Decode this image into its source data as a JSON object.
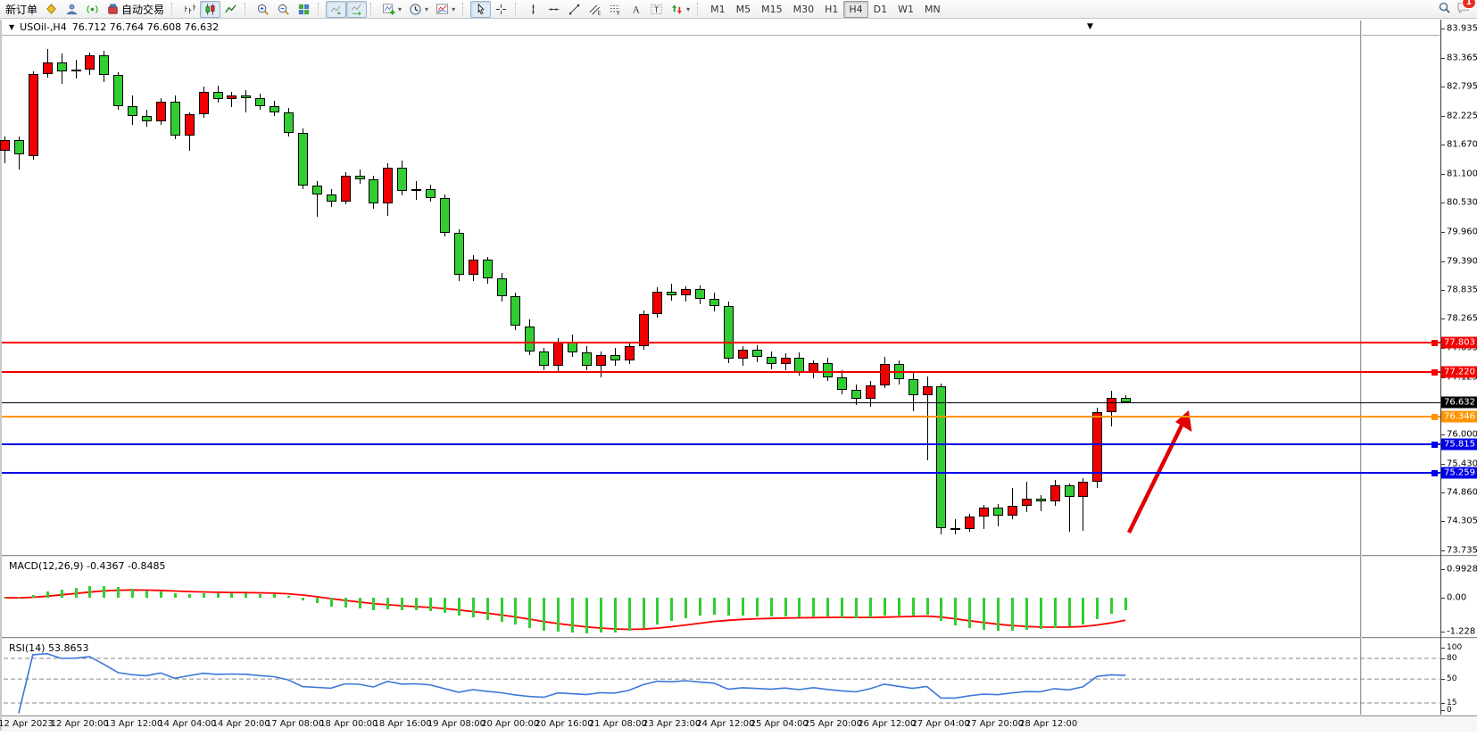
{
  "toolbar": {
    "groups": [
      {
        "items": [
          {
            "name": "new-order-button",
            "icon": "",
            "label": "新订单",
            "interactable": true
          },
          {
            "name": "deposit-button",
            "icon": "deposit-icon",
            "interactable": true
          },
          {
            "name": "profile-button",
            "icon": "profile-icon",
            "interactable": true
          },
          {
            "name": "signals-button",
            "icon": "signals-icon",
            "interactable": true
          },
          {
            "name": "autotrading-button",
            "icon": "autotrading-icon",
            "label": "自动交易",
            "interactable": true
          }
        ]
      },
      {
        "items": [
          {
            "name": "bar-chart-button",
            "icon": "bar-chart-icon"
          },
          {
            "name": "candlestick-button",
            "icon": "candlestick-icon",
            "active": true
          },
          {
            "name": "line-chart-button",
            "icon": "line-chart-icon"
          }
        ]
      },
      {
        "items": [
          {
            "name": "zoom-in-button",
            "icon": "zoom-in-icon"
          },
          {
            "name": "zoom-out-button",
            "icon": "zoom-out-icon"
          },
          {
            "name": "tile-windows-button",
            "icon": "tile-windows-icon"
          }
        ]
      },
      {
        "items": [
          {
            "name": "auto-scroll-button",
            "icon": "auto-scroll-icon",
            "active": true
          },
          {
            "name": "chart-shift-button",
            "icon": "chart-shift-icon",
            "active": true
          }
        ]
      },
      {
        "items": [
          {
            "name": "add-indicator-button",
            "icon": "add-indicator-icon",
            "dropdown": true
          },
          {
            "name": "periods-button",
            "icon": "periods-icon",
            "dropdown": true
          },
          {
            "name": "templates-button",
            "icon": "templates-icon",
            "dropdown": true
          }
        ]
      },
      {
        "items": [
          {
            "name": "cursor-button",
            "icon": "cursor-icon",
            "active": true
          },
          {
            "name": "crosshair-button",
            "icon": "crosshair-icon"
          }
        ]
      },
      {
        "items": [
          {
            "name": "vertical-line-button",
            "icon": "vline-icon"
          },
          {
            "name": "horizontal-line-button",
            "icon": "hline-icon"
          },
          {
            "name": "trendline-button",
            "icon": "trendline-icon"
          },
          {
            "name": "equidistant-channel-button",
            "icon": "channel-icon"
          },
          {
            "name": "fibonacci-button",
            "icon": "fibo-icon"
          },
          {
            "name": "text-button",
            "icon": "text-icon"
          },
          {
            "name": "text-label-button",
            "icon": "text-label-icon"
          },
          {
            "name": "arrows-button",
            "icon": "arrows-icon",
            "dropdown": true
          }
        ]
      }
    ],
    "timeframes": [
      "M1",
      "M5",
      "M15",
      "M30",
      "H1",
      "H4",
      "D1",
      "W1",
      "MN"
    ],
    "active_timeframe": "H4",
    "right": {
      "search_icon": "search-icon",
      "chat_icon": "chat-icon",
      "chat_badge": "1"
    }
  },
  "chart": {
    "title_symbol": "USOil-,H4",
    "title_ohlc": "76.712 76.764 76.608 76.632",
    "shift_marker": "▼",
    "price_axis_ticks": [
      "83.935",
      "83.365",
      "82.795",
      "82.225",
      "81.670",
      "81.100",
      "80.530",
      "79.960",
      "79.390",
      "78.835",
      "78.265",
      "77.695",
      "77.125",
      "76.555",
      "76.000",
      "75.430",
      "74.860",
      "74.305",
      "73.735"
    ],
    "hlines": [
      {
        "price": 77.803,
        "label": "77.803",
        "color": "#f50000"
      },
      {
        "price": 77.22,
        "label": "77.220",
        "color": "#f50000"
      },
      {
        "price": 76.346,
        "label": "76.346",
        "color": "#ff9400"
      },
      {
        "price": 75.815,
        "label": "75.815",
        "color": "#0000e8"
      },
      {
        "price": 75.259,
        "label": "75.259",
        "color": "#0000e8"
      }
    ],
    "current_price": {
      "value": 76.632,
      "label": "76.632",
      "color": "#000000"
    },
    "time_axis_labels": [
      "12 Apr 2023",
      "12 Apr 20:00",
      "13 Apr 12:00",
      "14 Apr 04:00",
      "14 Apr 20:00",
      "17 Apr 08:00",
      "18 Apr 00:00",
      "18 Apr 16:00",
      "19 Apr 08:00",
      "20 Apr 00:00",
      "20 Apr 16:00",
      "21 Apr 08:00",
      "23 Apr 23:00",
      "24 Apr 12:00",
      "25 Apr 04:00",
      "25 Apr 20:00",
      "26 Apr 12:00",
      "27 Apr 04:00",
      "27 Apr 20:00",
      "28 Apr 12:00"
    ],
    "colors": {
      "up_candle": "#f20000",
      "down_candle": "#32CD32",
      "wick": "#000000",
      "macd_histogram": "#32CD32",
      "macd_signal": "#ff0000",
      "rsi_line": "#3c78d8",
      "annotation_arrow": "#e00000"
    }
  },
  "chart_data": {
    "type": "candlestick",
    "title": "USOil-,H4",
    "ylim": [
      73.735,
      83.935
    ],
    "ohlc": [
      [
        81.55,
        81.82,
        81.3,
        81.75
      ],
      [
        81.75,
        81.82,
        81.18,
        81.48
      ],
      [
        81.45,
        83.1,
        81.38,
        83.05
      ],
      [
        83.05,
        83.53,
        82.98,
        83.28
      ],
      [
        83.28,
        83.45,
        82.85,
        83.1
      ],
      [
        83.1,
        83.32,
        82.95,
        83.13
      ],
      [
        83.13,
        83.47,
        83.02,
        83.42
      ],
      [
        83.42,
        83.5,
        82.88,
        83.02
      ],
      [
        83.02,
        83.08,
        82.35,
        82.42
      ],
      [
        82.42,
        82.62,
        82.05,
        82.22
      ],
      [
        82.22,
        82.35,
        82.02,
        82.12
      ],
      [
        82.12,
        82.58,
        82.05,
        82.5
      ],
      [
        82.5,
        82.62,
        81.78,
        81.85
      ],
      [
        81.85,
        82.3,
        81.55,
        82.26
      ],
      [
        82.26,
        82.8,
        82.2,
        82.7
      ],
      [
        82.7,
        82.82,
        82.48,
        82.56
      ],
      [
        82.56,
        82.7,
        82.4,
        82.62
      ],
      [
        82.62,
        82.74,
        82.3,
        82.58
      ],
      [
        82.58,
        82.66,
        82.35,
        82.42
      ],
      [
        82.42,
        82.52,
        82.22,
        82.3
      ],
      [
        82.3,
        82.38,
        81.82,
        81.9
      ],
      [
        81.9,
        81.98,
        80.8,
        80.86
      ],
      [
        80.86,
        80.95,
        80.25,
        80.7
      ],
      [
        80.7,
        80.8,
        80.45,
        80.55
      ],
      [
        80.55,
        81.12,
        80.5,
        81.05
      ],
      [
        81.05,
        81.18,
        80.9,
        80.98
      ],
      [
        80.98,
        81.05,
        80.42,
        80.52
      ],
      [
        80.52,
        81.3,
        80.28,
        81.22
      ],
      [
        81.22,
        81.36,
        80.68,
        80.76
      ],
      [
        80.76,
        80.95,
        80.58,
        80.8
      ],
      [
        80.8,
        80.88,
        80.55,
        80.62
      ],
      [
        80.62,
        80.7,
        79.88,
        79.95
      ],
      [
        79.95,
        80.02,
        79.0,
        79.12
      ],
      [
        79.12,
        79.5,
        79.0,
        79.42
      ],
      [
        79.42,
        79.48,
        78.95,
        79.05
      ],
      [
        79.05,
        79.15,
        78.6,
        78.7
      ],
      [
        78.7,
        78.78,
        78.05,
        78.12
      ],
      [
        78.12,
        78.25,
        77.55,
        77.62
      ],
      [
        77.62,
        77.7,
        77.25,
        77.35
      ],
      [
        77.35,
        77.88,
        77.22,
        77.82
      ],
      [
        77.82,
        77.95,
        77.52,
        77.6
      ],
      [
        77.6,
        77.72,
        77.25,
        77.35
      ],
      [
        77.35,
        77.62,
        77.12,
        77.55
      ],
      [
        77.55,
        77.7,
        77.35,
        77.45
      ],
      [
        77.45,
        77.78,
        77.38,
        77.72
      ],
      [
        77.72,
        78.42,
        77.65,
        78.35
      ],
      [
        78.35,
        78.88,
        78.28,
        78.8
      ],
      [
        78.8,
        78.95,
        78.62,
        78.72
      ],
      [
        78.72,
        78.9,
        78.6,
        78.85
      ],
      [
        78.85,
        78.92,
        78.55,
        78.65
      ],
      [
        78.65,
        78.78,
        78.4,
        78.52
      ],
      [
        78.52,
        78.6,
        77.4,
        77.48
      ],
      [
        77.48,
        77.72,
        77.35,
        77.65
      ],
      [
        77.65,
        77.75,
        77.42,
        77.52
      ],
      [
        77.52,
        77.62,
        77.28,
        77.38
      ],
      [
        77.38,
        77.58,
        77.25,
        77.5
      ],
      [
        77.5,
        77.6,
        77.15,
        77.22
      ],
      [
        77.22,
        77.45,
        77.1,
        77.4
      ],
      [
        77.4,
        77.5,
        77.05,
        77.12
      ],
      [
        77.12,
        77.25,
        76.78,
        76.88
      ],
      [
        76.88,
        76.98,
        76.58,
        76.7
      ],
      [
        76.7,
        77.05,
        76.55,
        76.96
      ],
      [
        76.96,
        77.52,
        76.9,
        77.38
      ],
      [
        77.38,
        77.45,
        76.98,
        77.08
      ],
      [
        77.08,
        77.22,
        76.45,
        76.77
      ],
      [
        76.77,
        77.13,
        75.5,
        76.94
      ],
      [
        76.94,
        77.0,
        74.05,
        74.17
      ],
      [
        74.17,
        74.35,
        74.04,
        74.15
      ],
      [
        74.15,
        74.45,
        74.1,
        74.4
      ],
      [
        74.4,
        74.62,
        74.15,
        74.58
      ],
      [
        74.58,
        74.65,
        74.2,
        74.42
      ],
      [
        74.42,
        74.95,
        74.35,
        74.6
      ],
      [
        74.6,
        75.08,
        74.48,
        74.74
      ],
      [
        74.74,
        74.82,
        74.5,
        74.7
      ],
      [
        74.7,
        75.12,
        74.6,
        75.0
      ],
      [
        75.0,
        75.05,
        74.1,
        74.78
      ],
      [
        74.78,
        75.15,
        74.12,
        75.08
      ],
      [
        75.08,
        76.52,
        74.96,
        76.44
      ],
      [
        76.44,
        76.86,
        76.16,
        76.712
      ],
      [
        76.712,
        76.764,
        76.608,
        76.632
      ]
    ],
    "indicators": [
      {
        "name": "MACD",
        "label": "MACD(12,26,9)",
        "values_text": "-0.4367 -0.8485",
        "params": [
          12,
          26,
          9
        ],
        "axis_labels": [
          "0.9928",
          "0.00",
          "-1.228"
        ]
      },
      {
        "name": "RSI",
        "label": "RSI(14)",
        "values_text": "53.8653",
        "period": 14,
        "axis_labels": [
          "100",
          "80",
          "50",
          "15",
          "0"
        ],
        "levels": [
          80,
          50,
          15
        ]
      }
    ]
  }
}
